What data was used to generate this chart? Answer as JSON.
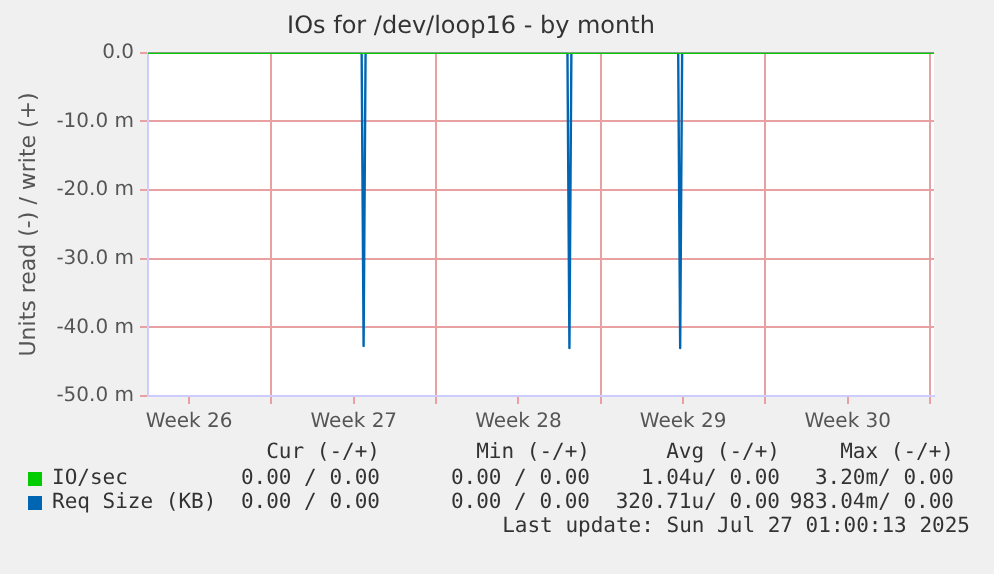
{
  "chart_data": {
    "type": "line",
    "title": "IOs for /dev/loop16 - by month",
    "ylabel": "Units read (-) / write (+)",
    "xlim": [
      "2025-06-24T18:00",
      "2025-07-28T04:00"
    ],
    "xticks": [
      {
        "value": "2025-06-26T12:00",
        "label": "Week 26"
      },
      {
        "value": "2025-06-30",
        "label": null
      },
      {
        "value": "2025-07-03T12:00",
        "label": "Week 27"
      },
      {
        "value": "2025-07-07",
        "label": null
      },
      {
        "value": "2025-07-10T12:00",
        "label": "Week 28"
      },
      {
        "value": "2025-07-14",
        "label": null
      },
      {
        "value": "2025-07-17T12:00",
        "label": "Week 29"
      },
      {
        "value": "2025-07-21",
        "label": null
      },
      {
        "value": "2025-07-24T12:00",
        "label": "Week 30"
      },
      {
        "value": "2025-07-28",
        "label": null
      }
    ],
    "ylim": [
      -50,
      0
    ],
    "yticks": [
      {
        "value": 0,
        "label": "0.0"
      },
      {
        "value": -10,
        "label": "-10.0 m"
      },
      {
        "value": -20,
        "label": "-20.0 m"
      },
      {
        "value": -30,
        "label": "-30.0 m"
      },
      {
        "value": -40,
        "label": "-40.0 m"
      },
      {
        "value": -50,
        "label": "-50.0 m"
      }
    ],
    "grid": true,
    "legend": "bottom left",
    "marker": "none",
    "line_style": "solid",
    "series": [
      {
        "name": "IO/sec",
        "color": "#00cc00",
        "x": [
          "2025-06-24T18:00",
          "2025-07-28T04:00"
        ],
        "values": [
          0,
          0
        ]
      },
      {
        "name": "Req Size (KB)",
        "color": "#0066b3",
        "x": [
          "2025-06-24T18:00",
          "2025-07-03T20:00",
          "2025-07-03T22:00",
          "2025-07-04T00:00",
          "2025-07-12T14:00",
          "2025-07-12T16:00",
          "2025-07-12T18:00",
          "2025-07-17T07:00",
          "2025-07-17T09:00",
          "2025-07-17T11:00",
          "2025-07-28T04:00"
        ],
        "values": [
          0,
          0,
          -42.7,
          0,
          0,
          -43,
          0,
          0,
          -43,
          0,
          0
        ]
      }
    ],
    "annotations": [
      "Cur (-/+)",
      "Min (-/+)",
      "Avg (-/+)",
      "Max (-/+)",
      "0.00 / 0.00",
      "0.00 / 0.00",
      "1.04u/ 0.00",
      "3.20m/ 0.00",
      "0.00 / 0.00",
      "0.00 / 0.00",
      "320.71u/ 0.00",
      "983.04m/ 0.00",
      "Last update: Sun Jul 27 01:00:13 2025"
    ]
  }
}
